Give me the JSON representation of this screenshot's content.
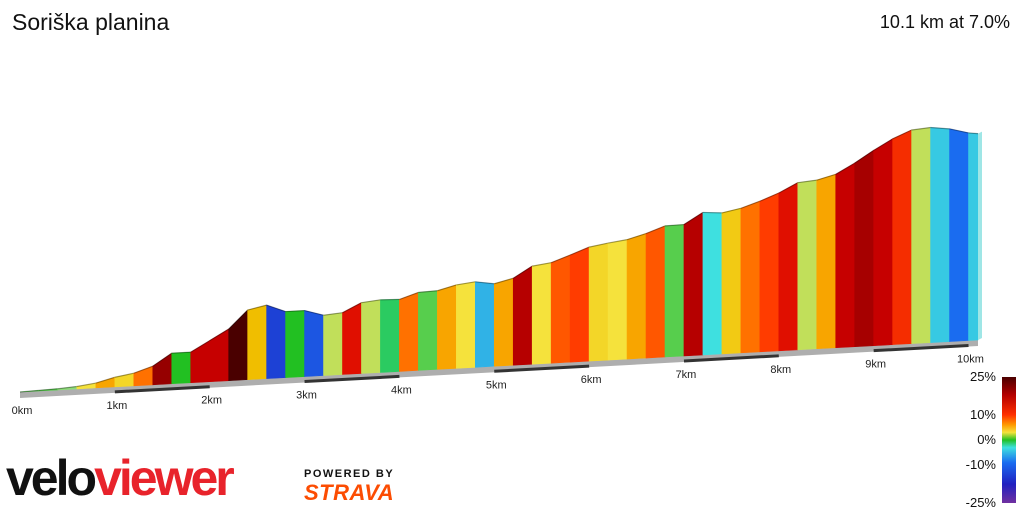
{
  "chart_data": {
    "type": "area",
    "title": "Soriška planina",
    "summary": "10.1 km at 7.0%",
    "x_unit": "km",
    "x_ticks": [
      {
        "value": 0,
        "label": "0km"
      },
      {
        "value": 1,
        "label": "1km"
      },
      {
        "value": 2,
        "label": "2km"
      },
      {
        "value": 3,
        "label": "3km"
      },
      {
        "value": 4,
        "label": "4km"
      },
      {
        "value": 5,
        "label": "5km"
      },
      {
        "value": 6,
        "label": "6km"
      },
      {
        "value": 7,
        "label": "7km"
      },
      {
        "value": 8,
        "label": "8km"
      },
      {
        "value": 9,
        "label": "9km"
      },
      {
        "value": 10,
        "label": "10km"
      }
    ],
    "xlim": [
      0,
      10.1
    ],
    "ylim": [
      0,
      720
    ],
    "distance_km": [
      0.0,
      0.2,
      0.4,
      0.6,
      0.8,
      1.0,
      1.2,
      1.4,
      1.6,
      1.8,
      2.0,
      2.2,
      2.4,
      2.6,
      2.8,
      3.0,
      3.2,
      3.4,
      3.6,
      3.8,
      4.0,
      4.2,
      4.4,
      4.6,
      4.8,
      5.0,
      5.2,
      5.4,
      5.6,
      5.8,
      6.0,
      6.2,
      6.4,
      6.6,
      6.8,
      7.0,
      7.2,
      7.4,
      7.6,
      7.8,
      8.0,
      8.2,
      8.4,
      8.6,
      8.8,
      9.0,
      9.2,
      9.4,
      9.6,
      9.8,
      10.0,
      10.1
    ],
    "elevation_gain_m": [
      0,
      2,
      4,
      8,
      16,
      32,
      42,
      62,
      102,
      102,
      137,
      172,
      232,
      245,
      220,
      220,
      201,
      206,
      236,
      242,
      240,
      260,
      262,
      278,
      285,
      275,
      290,
      327,
      335,
      357,
      380,
      390,
      398,
      415,
      437,
      438,
      475,
      470,
      482,
      502,
      526,
      557,
      562,
      578,
      612,
      651,
      686,
      712,
      717,
      709,
      692,
      688
    ],
    "segment_grade_pct": [
      1,
      1,
      2,
      4,
      8,
      5,
      10,
      20,
      0,
      17,
      17,
      30,
      7,
      -12,
      0,
      -10,
      3,
      15,
      3,
      -1,
      10,
      1,
      8,
      4,
      -5,
      8,
      18,
      4,
      11,
      12,
      5,
      4,
      8,
      11,
      1,
      18,
      -3,
      6,
      10,
      12,
      15,
      3,
      8,
      17,
      19,
      17,
      13,
      3,
      -4,
      -8,
      -4
    ],
    "legend": {
      "labels": [
        {
          "value": 25,
          "label": "25%"
        },
        {
          "value": 10,
          "label": "10%"
        },
        {
          "value": 0,
          "label": "0%"
        },
        {
          "value": -10,
          "label": "-10%"
        },
        {
          "value": -25,
          "label": "-25%"
        }
      ]
    },
    "colors": {
      "ground": "#aeaeae",
      "scale_bar": "#333333"
    }
  },
  "branding": {
    "velo_part1": "velo",
    "velo_part2": "viewer",
    "powered_by": "POWERED BY",
    "strava": "STRAVA"
  }
}
